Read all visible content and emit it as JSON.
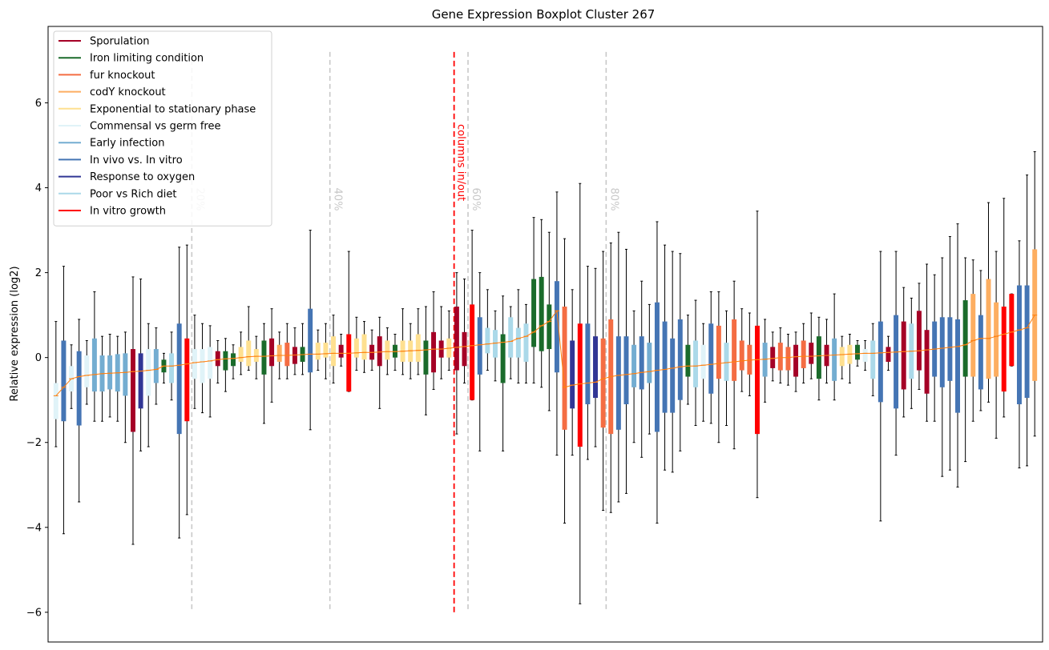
{
  "chart_data": {
    "type": "boxplot",
    "title": "Gene Expression Boxplot Cluster 267",
    "xlabel": "",
    "ylabel": "Relative expression (log2)",
    "ylim": [
      -6.7,
      7.8
    ],
    "yticks": [
      -6,
      -4,
      -2,
      0,
      2,
      4,
      6
    ],
    "grid": false,
    "legend_position": "upper-left",
    "legend": [
      {
        "label": "Sporulation",
        "color": "#a50026"
      },
      {
        "label": "Iron limiting condition",
        "color": "#1a6b2b"
      },
      {
        "label": "fur knockout",
        "color": "#f46d43"
      },
      {
        "label": "codY knockout",
        "color": "#fdae61"
      },
      {
        "label": "Exponential to stationary phase",
        "color": "#fee090"
      },
      {
        "label": "Commensal vs germ free",
        "color": "#e0f3f8"
      },
      {
        "label": "Early infection",
        "color": "#74add1"
      },
      {
        "label": "In vivo vs. In vitro",
        "color": "#4575b4"
      },
      {
        "label": "Response to oxygen",
        "color": "#313695"
      },
      {
        "label": "Poor vs Rich diet",
        "color": "#abd9e9"
      },
      {
        "label": "In vitro growth",
        "color": "#ff0000"
      }
    ],
    "percentile_markers": [
      {
        "label": "20%",
        "position": 0.2
      },
      {
        "label": "40%",
        "position": 0.4
      },
      {
        "label": "60%",
        "position": 0.6
      },
      {
        "label": "80%",
        "position": 0.8
      }
    ],
    "divider": {
      "label": "columns in/out",
      "position": 0.5,
      "color": "#ff0000"
    },
    "trend_color": "#ff7f0e",
    "median_color": "#ff7f0e",
    "boxes": [
      {
        "c": "#e0f3f8",
        "q1": -1.45,
        "med": -0.9,
        "q3": -0.6,
        "lo": -2.1,
        "hi": 0.85
      },
      {
        "c": "#4575b4",
        "q1": -1.5,
        "med": -0.7,
        "q3": 0.4,
        "lo": -4.15,
        "hi": 2.15
      },
      {
        "c": "#e0f3f8",
        "q1": -0.8,
        "med": -0.5,
        "q3": -0.2,
        "lo": -1.2,
        "hi": 0.3
      },
      {
        "c": "#4575b4",
        "q1": -1.6,
        "med": -0.45,
        "q3": 0.15,
        "lo": -3.4,
        "hi": 0.9
      },
      {
        "c": "#e0f3f8",
        "q1": -0.7,
        "med": -0.42,
        "q3": 0.05,
        "lo": -1.1,
        "hi": 0.4
      },
      {
        "c": "#74add1",
        "q1": -0.8,
        "med": -0.4,
        "q3": 0.45,
        "lo": -1.5,
        "hi": 1.55
      },
      {
        "c": "#74add1",
        "q1": -0.8,
        "med": -0.38,
        "q3": 0.05,
        "lo": -1.5,
        "hi": 0.5
      },
      {
        "c": "#74add1",
        "q1": -0.75,
        "med": -0.37,
        "q3": 0.05,
        "lo": -1.4,
        "hi": 0.55
      },
      {
        "c": "#74add1",
        "q1": -0.8,
        "med": -0.36,
        "q3": 0.08,
        "lo": -1.5,
        "hi": 0.5
      },
      {
        "c": "#74add1",
        "q1": -0.9,
        "med": -0.35,
        "q3": 0.1,
        "lo": -2.0,
        "hi": 0.6
      },
      {
        "c": "#a50026",
        "q1": -1.75,
        "med": -0.33,
        "q3": 0.2,
        "lo": -4.4,
        "hi": 1.9
      },
      {
        "c": "#313695",
        "q1": -1.2,
        "med": -0.32,
        "q3": 0.1,
        "lo": -2.2,
        "hi": 1.85
      },
      {
        "c": "#e0f3f8",
        "q1": -0.9,
        "med": -0.3,
        "q3": 0.2,
        "lo": -2.1,
        "hi": 0.8
      },
      {
        "c": "#74add1",
        "q1": -0.6,
        "med": -0.28,
        "q3": 0.2,
        "lo": -1.1,
        "hi": 0.7
      },
      {
        "c": "#1a6b2b",
        "q1": -0.35,
        "med": -0.2,
        "q3": -0.05,
        "lo": -0.6,
        "hi": 0.1
      },
      {
        "c": "#abd9e9",
        "q1": -0.6,
        "med": -0.2,
        "q3": 0.1,
        "lo": -1.0,
        "hi": 0.6
      },
      {
        "c": "#4575b4",
        "q1": -1.8,
        "med": -0.18,
        "q3": 0.8,
        "lo": -4.25,
        "hi": 2.6
      },
      {
        "c": "#ff0000",
        "q1": -1.5,
        "med": -0.15,
        "q3": 0.45,
        "lo": -3.7,
        "hi": 2.65
      },
      {
        "c": "#e0f3f8",
        "q1": -0.5,
        "med": -0.12,
        "q3": 0.2,
        "lo": -1.2,
        "hi": 1.0
      },
      {
        "c": "#e0f3f8",
        "q1": -0.6,
        "med": -0.1,
        "q3": 0.2,
        "lo": -1.3,
        "hi": 0.8
      },
      {
        "c": "#e0f3f8",
        "q1": -0.5,
        "med": -0.08,
        "q3": 0.25,
        "lo": -1.4,
        "hi": 0.75
      },
      {
        "c": "#a50026",
        "q1": -0.2,
        "med": -0.05,
        "q3": 0.15,
        "lo": -0.6,
        "hi": 0.4
      },
      {
        "c": "#1a6b2b",
        "q1": -0.3,
        "med": -0.03,
        "q3": 0.15,
        "lo": -0.8,
        "hi": 0.45
      },
      {
        "c": "#1a6b2b",
        "q1": -0.2,
        "med": -0.02,
        "q3": 0.1,
        "lo": -0.5,
        "hi": 0.3
      },
      {
        "c": "#fee090",
        "q1": -0.1,
        "med": 0.0,
        "q3": 0.25,
        "lo": -0.4,
        "hi": 0.6
      },
      {
        "c": "#fee090",
        "q1": -0.2,
        "med": 0.02,
        "q3": 0.4,
        "lo": -0.3,
        "hi": 1.2
      },
      {
        "c": "#fee090",
        "q1": -0.1,
        "med": 0.03,
        "q3": 0.2,
        "lo": -0.5,
        "hi": 0.5
      },
      {
        "c": "#1a6b2b",
        "q1": -0.4,
        "med": 0.03,
        "q3": 0.4,
        "lo": -1.55,
        "hi": 0.8
      },
      {
        "c": "#a50026",
        "q1": -0.2,
        "med": 0.04,
        "q3": 0.45,
        "lo": -1.05,
        "hi": 1.15
      },
      {
        "c": "#fdae61",
        "q1": -0.1,
        "med": 0.05,
        "q3": 0.3,
        "lo": -0.5,
        "hi": 0.6
      },
      {
        "c": "#f46d43",
        "q1": -0.2,
        "med": 0.05,
        "q3": 0.35,
        "lo": -0.5,
        "hi": 0.8
      },
      {
        "c": "#a50026",
        "q1": -0.15,
        "med": 0.06,
        "q3": 0.25,
        "lo": -0.4,
        "hi": 0.7
      },
      {
        "c": "#1a6b2b",
        "q1": -0.1,
        "med": 0.07,
        "q3": 0.25,
        "lo": -0.4,
        "hi": 0.8
      },
      {
        "c": "#4575b4",
        "q1": -0.35,
        "med": 0.08,
        "q3": 1.15,
        "lo": -1.7,
        "hi": 3.0
      },
      {
        "c": "#fee090",
        "q1": -0.05,
        "med": 0.08,
        "q3": 0.35,
        "lo": -0.3,
        "hi": 0.65
      },
      {
        "c": "#fee090",
        "q1": 0.0,
        "med": 0.09,
        "q3": 0.35,
        "lo": -0.5,
        "hi": 0.8
      },
      {
        "c": "#fee090",
        "q1": -0.2,
        "med": 0.1,
        "q3": 0.5,
        "lo": -0.6,
        "hi": 1.0
      },
      {
        "c": "#a50026",
        "q1": 0.0,
        "med": 0.1,
        "q3": 0.3,
        "lo": -0.2,
        "hi": 0.55
      },
      {
        "c": "#ff0000",
        "q1": -0.8,
        "med": 0.1,
        "q3": 0.55,
        "lo": -0.8,
        "hi": 2.5
      },
      {
        "c": "#fee090",
        "q1": 0.0,
        "med": 0.11,
        "q3": 0.45,
        "lo": -0.3,
        "hi": 0.95
      },
      {
        "c": "#fee090",
        "q1": -0.05,
        "med": 0.12,
        "q3": 0.55,
        "lo": -0.35,
        "hi": 0.85
      },
      {
        "c": "#a50026",
        "q1": -0.05,
        "med": 0.12,
        "q3": 0.3,
        "lo": -0.3,
        "hi": 0.65
      },
      {
        "c": "#a50026",
        "q1": -0.2,
        "med": 0.13,
        "q3": 0.5,
        "lo": -1.2,
        "hi": 0.95
      },
      {
        "c": "#fee090",
        "q1": -0.05,
        "med": 0.14,
        "q3": 0.4,
        "lo": -0.4,
        "hi": 0.7
      },
      {
        "c": "#1a6b2b",
        "q1": 0.0,
        "med": 0.14,
        "q3": 0.3,
        "lo": -0.3,
        "hi": 0.55
      },
      {
        "c": "#fee090",
        "q1": -0.1,
        "med": 0.15,
        "q3": 0.4,
        "lo": -0.4,
        "hi": 1.15
      },
      {
        "c": "#fee090",
        "q1": -0.1,
        "med": 0.16,
        "q3": 0.4,
        "lo": -0.5,
        "hi": 0.8
      },
      {
        "c": "#fee090",
        "q1": -0.1,
        "med": 0.17,
        "q3": 0.55,
        "lo": -0.4,
        "hi": 1.15
      },
      {
        "c": "#1a6b2b",
        "q1": -0.4,
        "med": 0.18,
        "q3": 0.4,
        "lo": -1.35,
        "hi": 1.2
      },
      {
        "c": "#a50026",
        "q1": -0.35,
        "med": 0.2,
        "q3": 0.6,
        "lo": -0.75,
        "hi": 1.55
      },
      {
        "c": "#a50026",
        "q1": 0.0,
        "med": 0.2,
        "q3": 0.4,
        "lo": -0.5,
        "hi": 1.2
      },
      {
        "c": "#fee090",
        "q1": 0.0,
        "med": 0.22,
        "q3": 0.45,
        "lo": -0.3,
        "hi": 1.1
      },
      {
        "c": "#a50026",
        "q1": -0.3,
        "med": 0.24,
        "q3": 1.2,
        "lo": -1.8,
        "hi": 2.0
      },
      {
        "c": "#a50026",
        "q1": -0.2,
        "med": 0.26,
        "q3": 0.6,
        "lo": -0.6,
        "hi": 1.85
      },
      {
        "c": "#ff0000",
        "q1": -1.0,
        "med": 0.28,
        "q3": 1.25,
        "lo": -1.0,
        "hi": 3.0
      },
      {
        "c": "#4575b4",
        "q1": -0.4,
        "med": 0.3,
        "q3": 0.95,
        "lo": -2.2,
        "hi": 2.0
      },
      {
        "c": "#abd9e9",
        "q1": 0.1,
        "med": 0.32,
        "q3": 0.7,
        "lo": -0.3,
        "hi": 1.6
      },
      {
        "c": "#abd9e9",
        "q1": 0.0,
        "med": 0.34,
        "q3": 0.65,
        "lo": -0.55,
        "hi": 1.1
      },
      {
        "c": "#1a6b2b",
        "q1": -0.6,
        "med": 0.36,
        "q3": 0.55,
        "lo": -2.2,
        "hi": 1.45
      },
      {
        "c": "#abd9e9",
        "q1": 0.0,
        "med": 0.38,
        "q3": 0.95,
        "lo": -0.5,
        "hi": 1.2
      },
      {
        "c": "#abd9e9",
        "q1": 0.0,
        "med": 0.45,
        "q3": 0.7,
        "lo": -0.6,
        "hi": 1.6
      },
      {
        "c": "#abd9e9",
        "q1": -0.1,
        "med": 0.5,
        "q3": 0.8,
        "lo": -0.6,
        "hi": 1.25
      },
      {
        "c": "#1a6b2b",
        "q1": 0.25,
        "med": 0.6,
        "q3": 1.85,
        "lo": -0.6,
        "hi": 3.3
      },
      {
        "c": "#1a6b2b",
        "q1": 0.15,
        "med": 0.75,
        "q3": 1.9,
        "lo": -0.7,
        "hi": 3.25
      },
      {
        "c": "#1a6b2b",
        "q1": 0.2,
        "med": 0.85,
        "q3": 1.25,
        "lo": -1.25,
        "hi": 2.95
      },
      {
        "c": "#4575b4",
        "q1": -0.35,
        "med": 1.1,
        "q3": 1.8,
        "lo": -2.3,
        "hi": 3.9
      },
      {
        "c": "#f46d43",
        "q1": -1.7,
        "med": -0.7,
        "q3": 1.2,
        "lo": -3.9,
        "hi": 2.8
      },
      {
        "c": "#313695",
        "q1": -1.2,
        "med": -0.65,
        "q3": 0.4,
        "lo": -2.3,
        "hi": 1.6
      },
      {
        "c": "#ff0000",
        "q1": -2.1,
        "med": -0.62,
        "q3": 0.8,
        "lo": -5.8,
        "hi": 4.1
      },
      {
        "c": "#4575b4",
        "q1": -1.1,
        "med": -0.6,
        "q3": 0.8,
        "lo": -2.4,
        "hi": 2.15
      },
      {
        "c": "#313695",
        "q1": -0.95,
        "med": -0.58,
        "q3": 0.5,
        "lo": -2.1,
        "hi": 2.1
      },
      {
        "c": "#f46d43",
        "q1": -1.65,
        "med": -0.5,
        "q3": 0.45,
        "lo": -3.6,
        "hi": 2.5
      },
      {
        "c": "#f46d43",
        "q1": -1.8,
        "med": -0.45,
        "q3": 0.9,
        "lo": -3.65,
        "hi": 2.7
      },
      {
        "c": "#4575b4",
        "q1": -1.7,
        "med": -0.42,
        "q3": 0.5,
        "lo": -3.4,
        "hi": 2.95
      },
      {
        "c": "#4575b4",
        "q1": -1.1,
        "med": -0.4,
        "q3": 0.5,
        "lo": -3.2,
        "hi": 2.55
      },
      {
        "c": "#74add1",
        "q1": -0.7,
        "med": -0.38,
        "q3": 0.3,
        "lo": -2.0,
        "hi": 1.1
      },
      {
        "c": "#4575b4",
        "q1": -0.75,
        "med": -0.35,
        "q3": 0.5,
        "lo": -2.35,
        "hi": 1.8
      },
      {
        "c": "#74add1",
        "q1": -0.6,
        "med": -0.33,
        "q3": 0.35,
        "lo": -1.8,
        "hi": 1.25
      },
      {
        "c": "#4575b4",
        "q1": -1.75,
        "med": -0.3,
        "q3": 1.3,
        "lo": -3.9,
        "hi": 3.2
      },
      {
        "c": "#4575b4",
        "q1": -1.3,
        "med": -0.28,
        "q3": 0.85,
        "lo": -2.65,
        "hi": 2.65
      },
      {
        "c": "#4575b4",
        "q1": -1.3,
        "med": -0.25,
        "q3": 0.45,
        "lo": -2.7,
        "hi": 2.5
      },
      {
        "c": "#4575b4",
        "q1": -1.0,
        "med": -0.22,
        "q3": 0.9,
        "lo": -2.2,
        "hi": 2.45
      },
      {
        "c": "#1a6b2b",
        "q1": -0.45,
        "med": -0.2,
        "q3": 0.3,
        "lo": -1.1,
        "hi": 1.0
      },
      {
        "c": "#abd9e9",
        "q1": -0.7,
        "med": -0.2,
        "q3": 0.4,
        "lo": -1.6,
        "hi": 1.35
      },
      {
        "c": "#e0f3f8",
        "q1": -0.5,
        "med": -0.18,
        "q3": 0.3,
        "lo": -1.5,
        "hi": 0.8
      },
      {
        "c": "#4575b4",
        "q1": -0.85,
        "med": -0.16,
        "q3": 0.8,
        "lo": -1.55,
        "hi": 1.55
      },
      {
        "c": "#f46d43",
        "q1": -0.5,
        "med": -0.14,
        "q3": 0.75,
        "lo": -2.0,
        "hi": 1.55
      },
      {
        "c": "#abd9e9",
        "q1": -0.55,
        "med": -0.12,
        "q3": 0.35,
        "lo": -1.6,
        "hi": 1.1
      },
      {
        "c": "#f46d43",
        "q1": -0.55,
        "med": -0.1,
        "q3": 0.9,
        "lo": -2.15,
        "hi": 1.8
      },
      {
        "c": "#f46d43",
        "q1": -0.3,
        "med": -0.08,
        "q3": 0.4,
        "lo": -0.8,
        "hi": 1.15
      },
      {
        "c": "#f46d43",
        "q1": -0.4,
        "med": -0.06,
        "q3": 0.3,
        "lo": -0.9,
        "hi": 1.05
      },
      {
        "c": "#ff0000",
        "q1": -1.8,
        "med": -0.05,
        "q3": 0.75,
        "lo": -3.3,
        "hi": 3.45
      },
      {
        "c": "#74add1",
        "q1": -0.45,
        "med": -0.04,
        "q3": 0.35,
        "lo": -1.05,
        "hi": 0.9
      },
      {
        "c": "#a50026",
        "q1": -0.25,
        "med": -0.02,
        "q3": 0.25,
        "lo": -0.55,
        "hi": 0.6
      },
      {
        "c": "#f46d43",
        "q1": -0.3,
        "med": 0.0,
        "q3": 0.35,
        "lo": -0.6,
        "hi": 0.7
      },
      {
        "c": "#f46d43",
        "q1": -0.3,
        "med": 0.0,
        "q3": 0.25,
        "lo": -0.65,
        "hi": 0.55
      },
      {
        "c": "#a50026",
        "q1": -0.45,
        "med": 0.02,
        "q3": 0.3,
        "lo": -0.8,
        "hi": 0.6
      },
      {
        "c": "#f46d43",
        "q1": -0.25,
        "med": 0.03,
        "q3": 0.4,
        "lo": -0.6,
        "hi": 0.8
      },
      {
        "c": "#a50026",
        "q1": -0.15,
        "med": 0.03,
        "q3": 0.35,
        "lo": -0.5,
        "hi": 1.05
      },
      {
        "c": "#1a6b2b",
        "q1": -0.5,
        "med": 0.04,
        "q3": 0.5,
        "lo": -1.0,
        "hi": 0.95
      },
      {
        "c": "#a50026",
        "q1": -0.2,
        "med": 0.05,
        "q3": 0.3,
        "lo": -0.6,
        "hi": 0.9
      },
      {
        "c": "#74add1",
        "q1": -0.55,
        "med": 0.06,
        "q3": 0.45,
        "lo": -1.0,
        "hi": 1.5
      },
      {
        "c": "#fee090",
        "q1": -0.2,
        "med": 0.07,
        "q3": 0.25,
        "lo": -0.5,
        "hi": 0.5
      },
      {
        "c": "#fee090",
        "q1": -0.15,
        "med": 0.08,
        "q3": 0.3,
        "lo": -0.6,
        "hi": 0.55
      },
      {
        "c": "#1a6b2b",
        "q1": -0.05,
        "med": 0.09,
        "q3": 0.3,
        "lo": -0.2,
        "hi": 0.4
      },
      {
        "c": "#e0f3f8",
        "q1": -0.1,
        "med": 0.1,
        "q3": 0.2,
        "lo": -0.3,
        "hi": 0.4
      },
      {
        "c": "#abd9e9",
        "q1": -0.5,
        "med": 0.1,
        "q3": 0.4,
        "lo": -0.9,
        "hi": 0.8
      },
      {
        "c": "#4575b4",
        "q1": -1.05,
        "med": 0.11,
        "q3": 0.85,
        "lo": -3.85,
        "hi": 2.5
      },
      {
        "c": "#a50026",
        "q1": -0.1,
        "med": 0.12,
        "q3": 0.25,
        "lo": -0.3,
        "hi": 0.5
      },
      {
        "c": "#4575b4",
        "q1": -1.2,
        "med": 0.13,
        "q3": 1.0,
        "lo": -2.3,
        "hi": 2.5
      },
      {
        "c": "#a50026",
        "q1": -0.75,
        "med": 0.14,
        "q3": 0.85,
        "lo": -1.4,
        "hi": 1.65
      },
      {
        "c": "#abd9e9",
        "q1": -0.5,
        "med": 0.15,
        "q3": 0.8,
        "lo": -1.2,
        "hi": 1.4
      },
      {
        "c": "#a50026",
        "q1": -0.3,
        "med": 0.16,
        "q3": 1.1,
        "lo": -0.75,
        "hi": 1.75
      },
      {
        "c": "#a50026",
        "q1": -0.85,
        "med": 0.18,
        "q3": 0.65,
        "lo": -1.5,
        "hi": 2.2
      },
      {
        "c": "#4575b4",
        "q1": -0.45,
        "med": 0.2,
        "q3": 0.85,
        "lo": -1.5,
        "hi": 1.95
      },
      {
        "c": "#4575b4",
        "q1": -0.7,
        "med": 0.22,
        "q3": 0.95,
        "lo": -2.8,
        "hi": 2.35
      },
      {
        "c": "#4575b4",
        "q1": -0.55,
        "med": 0.24,
        "q3": 0.95,
        "lo": -2.65,
        "hi": 2.85
      },
      {
        "c": "#4575b4",
        "q1": -1.3,
        "med": 0.26,
        "q3": 0.9,
        "lo": -3.05,
        "hi": 3.15
      },
      {
        "c": "#1a6b2b",
        "q1": -0.45,
        "med": 0.3,
        "q3": 1.35,
        "lo": -2.45,
        "hi": 2.35
      },
      {
        "c": "#fdae61",
        "q1": -0.45,
        "med": 0.4,
        "q3": 1.5,
        "lo": -1.5,
        "hi": 2.3
      },
      {
        "c": "#4575b4",
        "q1": -0.75,
        "med": 0.45,
        "q3": 1.0,
        "lo": -1.25,
        "hi": 2.05
      },
      {
        "c": "#fdae61",
        "q1": -0.5,
        "med": 0.45,
        "q3": 1.85,
        "lo": -1.05,
        "hi": 3.65
      },
      {
        "c": "#fdae61",
        "q1": -0.45,
        "med": 0.5,
        "q3": 1.3,
        "lo": -1.9,
        "hi": 2.5
      },
      {
        "c": "#ff0000",
        "q1": -0.8,
        "med": 0.55,
        "q3": 1.2,
        "lo": -1.4,
        "hi": 3.75
      },
      {
        "c": "#ff0000",
        "q1": -0.2,
        "med": 0.6,
        "q3": 1.5,
        "lo": -0.2,
        "hi": 1.5
      },
      {
        "c": "#4575b4",
        "q1": -1.1,
        "med": 0.65,
        "q3": 1.7,
        "lo": -2.6,
        "hi": 2.75
      },
      {
        "c": "#4575b4",
        "q1": -0.95,
        "med": 0.7,
        "q3": 1.7,
        "lo": -2.55,
        "hi": 4.3
      },
      {
        "c": "#fdae61",
        "q1": -0.55,
        "med": 1.0,
        "q3": 2.55,
        "lo": -1.85,
        "hi": 4.85
      }
    ]
  }
}
